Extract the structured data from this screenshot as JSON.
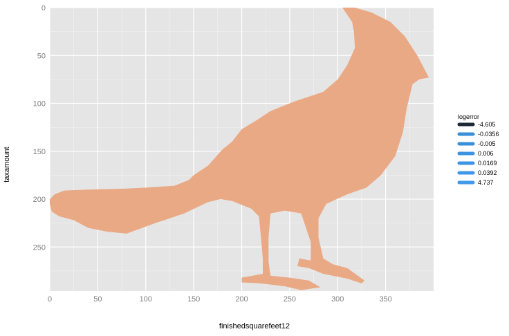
{
  "chart_data": {
    "type": "area",
    "title": "",
    "xlabel": "finishedsquarefeet12",
    "ylabel": "taxamount",
    "xlim": [
      0,
      400
    ],
    "ylim": [
      0,
      296
    ],
    "y_reversed": true,
    "x_ticks": [
      0,
      50,
      100,
      150,
      200,
      250,
      300,
      350
    ],
    "y_ticks": [
      0,
      50,
      100,
      150,
      200,
      250
    ],
    "grid": true,
    "legend_position": "right",
    "fill_color": "#eaa985",
    "panel_color": "#e5e5e5",
    "shape_outline": [
      [
        0,
        200
      ],
      [
        5,
        195
      ],
      [
        15,
        191
      ],
      [
        40,
        190
      ],
      [
        80,
        189
      ],
      [
        100,
        188
      ],
      [
        130,
        186
      ],
      [
        145,
        180
      ],
      [
        150,
        175
      ],
      [
        165,
        165
      ],
      [
        180,
        148
      ],
      [
        190,
        140
      ],
      [
        200,
        127
      ],
      [
        215,
        118
      ],
      [
        230,
        108
      ],
      [
        255,
        98
      ],
      [
        285,
        88
      ],
      [
        300,
        75
      ],
      [
        310,
        60
      ],
      [
        318,
        42
      ],
      [
        317,
        25
      ],
      [
        315,
        15
      ],
      [
        305,
        0
      ],
      [
        318,
        0
      ],
      [
        335,
        5
      ],
      [
        355,
        15
      ],
      [
        370,
        30
      ],
      [
        383,
        50
      ],
      [
        395,
        73
      ],
      [
        385,
        75
      ],
      [
        378,
        80
      ],
      [
        372,
        105
      ],
      [
        368,
        130
      ],
      [
        360,
        155
      ],
      [
        345,
        175
      ],
      [
        330,
        188
      ],
      [
        310,
        195
      ],
      [
        288,
        205
      ],
      [
        280,
        220
      ],
      [
        280,
        240
      ],
      [
        285,
        262
      ],
      [
        295,
        268
      ],
      [
        310,
        272
      ],
      [
        328,
        285
      ],
      [
        325,
        288
      ],
      [
        310,
        283
      ],
      [
        285,
        278
      ],
      [
        270,
        272
      ],
      [
        258,
        270
      ],
      [
        260,
        262
      ],
      [
        272,
        264
      ],
      [
        272,
        245
      ],
      [
        262,
        215
      ],
      [
        245,
        212
      ],
      [
        230,
        215
      ],
      [
        228,
        240
      ],
      [
        228,
        265
      ],
      [
        230,
        280
      ],
      [
        250,
        282
      ],
      [
        270,
        285
      ],
      [
        282,
        292
      ],
      [
        262,
        295
      ],
      [
        245,
        291
      ],
      [
        220,
        288
      ],
      [
        200,
        287
      ],
      [
        200,
        282
      ],
      [
        222,
        278
      ],
      [
        222,
        262
      ],
      [
        220,
        240
      ],
      [
        218,
        218
      ],
      [
        210,
        210
      ],
      [
        190,
        202
      ],
      [
        178,
        200
      ],
      [
        165,
        203
      ],
      [
        140,
        215
      ],
      [
        110,
        225
      ],
      [
        80,
        236
      ],
      [
        60,
        234
      ],
      [
        40,
        230
      ],
      [
        25,
        222
      ],
      [
        10,
        218
      ],
      [
        2,
        213
      ],
      [
        0,
        205
      ]
    ]
  },
  "legend": {
    "title": "logerror",
    "items": [
      {
        "label": "-4.605",
        "color": "#1c2a38"
      },
      {
        "label": "-0.0356",
        "color": "#3a8fd9"
      },
      {
        "label": "-0.005",
        "color": "#3a8fd9"
      },
      {
        "label": "0.006",
        "color": "#3d93df"
      },
      {
        "label": "0.0169",
        "color": "#3e95e2"
      },
      {
        "label": "0.0392",
        "color": "#3f97e5"
      },
      {
        "label": "4.737",
        "color": "#4199e8"
      }
    ]
  }
}
